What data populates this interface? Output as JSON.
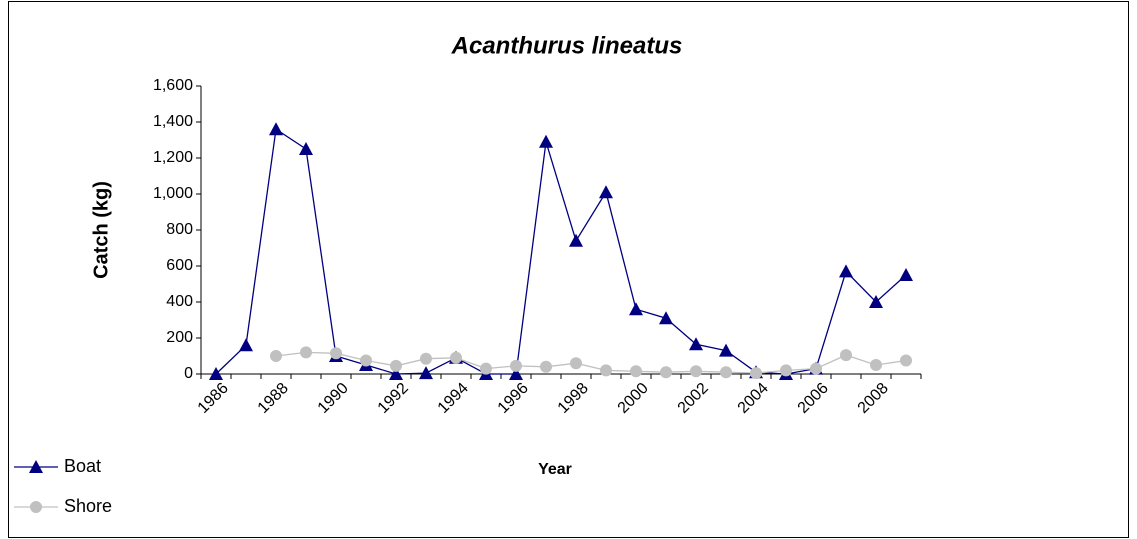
{
  "chart_data": {
    "type": "line",
    "title": "Acanthurus lineatus",
    "x_label": "Year",
    "y_label": "Catch (kg)",
    "categories": [
      "1986",
      null,
      "1988",
      null,
      "1990",
      null,
      "1992",
      null,
      "1994",
      null,
      "1996",
      null,
      "1998",
      null,
      "2000",
      null,
      "2002",
      null,
      "2004",
      null,
      "2006",
      null,
      "2008",
      null
    ],
    "series": [
      {
        "name": "Boat",
        "color": "#000080",
        "marker": "triangle",
        "values": [
          0,
          160,
          1360,
          1250,
          100,
          50,
          0,
          5,
          90,
          0,
          0,
          1290,
          740,
          1010,
          360,
          310,
          165,
          130,
          10,
          0,
          30,
          570,
          400,
          550
        ]
      },
      {
        "name": "Shore",
        "color": "#c0c0c0",
        "marker": "circle",
        "values": [
          null,
          null,
          100,
          120,
          115,
          75,
          45,
          85,
          90,
          30,
          45,
          40,
          60,
          20,
          15,
          10,
          15,
          10,
          5,
          20,
          30,
          105,
          50,
          75
        ]
      }
    ],
    "ylim": [
      0,
      1600
    ],
    "yticks": [
      0,
      200,
      400,
      600,
      800,
      {
        "value": 1000,
        "label": "1,000"
      },
      {
        "value": 1200,
        "label": "1,200"
      },
      {
        "value": 1400,
        "label": "1,400"
      },
      {
        "value": 1600,
        "label": "1,600"
      }
    ],
    "grid": false,
    "legend": "bottom-left"
  }
}
